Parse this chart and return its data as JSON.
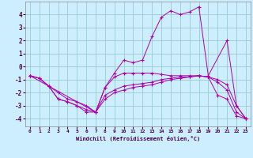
{
  "background_color": "#cceeff",
  "grid_color": "#99cccc",
  "line_color": "#aa00aa",
  "xlim_min": -0.5,
  "xlim_max": 23.5,
  "ylim_min": -4.6,
  "ylim_max": 5.0,
  "yticks": [
    -4,
    -3,
    -2,
    -1,
    0,
    1,
    2,
    3,
    4
  ],
  "xticks": [
    0,
    1,
    2,
    3,
    4,
    5,
    6,
    7,
    8,
    9,
    10,
    11,
    12,
    13,
    14,
    15,
    16,
    17,
    18,
    19,
    20,
    21,
    22,
    23
  ],
  "xlabel": "Windchill (Refroidissement éolien,°C)",
  "lineA_x": [
    0,
    1,
    2,
    7,
    8,
    9,
    10,
    11,
    12,
    13,
    14,
    15,
    16,
    17,
    18,
    19,
    21,
    22,
    23
  ],
  "lineA_y": [
    -0.7,
    -0.9,
    -1.5,
    -3.5,
    -1.6,
    -0.5,
    0.5,
    0.3,
    0.5,
    2.3,
    3.8,
    4.3,
    4.0,
    4.2,
    4.6,
    -0.7,
    2.0,
    -3.0,
    -4.0
  ],
  "lineB_x": [
    0,
    1,
    2,
    3,
    4,
    5,
    6,
    7,
    8,
    9,
    10,
    11,
    12,
    13,
    14,
    15,
    16,
    17,
    18,
    19,
    20,
    21,
    22,
    23
  ],
  "lineB_y": [
    -0.7,
    -0.9,
    -1.5,
    -2.0,
    -2.5,
    -2.7,
    -3.0,
    -3.5,
    -1.6,
    -0.8,
    -0.5,
    -0.5,
    -0.5,
    -0.5,
    -0.6,
    -0.7,
    -0.7,
    -0.7,
    -0.7,
    -0.8,
    -2.2,
    -2.5,
    -3.8,
    -4.0
  ],
  "lineC_x": [
    0,
    1,
    2,
    3,
    4,
    5,
    6,
    7,
    8,
    9,
    10,
    11,
    12,
    13,
    14,
    15,
    16,
    17,
    18,
    19,
    20,
    21,
    22,
    23
  ],
  "lineC_y": [
    -0.7,
    -0.9,
    -1.5,
    -2.5,
    -2.7,
    -3.0,
    -3.3,
    -3.5,
    -2.2,
    -1.8,
    -1.5,
    -1.4,
    -1.3,
    -1.2,
    -1.0,
    -0.9,
    -0.8,
    -0.8,
    -0.7,
    -0.8,
    -1.2,
    -1.8,
    -3.5,
    -4.0
  ],
  "lineD_x": [
    0,
    2,
    3,
    4,
    5,
    6,
    7,
    8,
    9,
    10,
    11,
    12,
    13,
    14,
    15,
    16,
    17,
    18,
    19,
    20,
    21,
    22,
    23
  ],
  "lineD_y": [
    -0.7,
    -1.5,
    -2.5,
    -2.7,
    -3.0,
    -3.5,
    -3.5,
    -2.5,
    -2.0,
    -1.8,
    -1.6,
    -1.5,
    -1.4,
    -1.2,
    -1.0,
    -0.9,
    -0.8,
    -0.7,
    -0.8,
    -1.0,
    -1.4,
    -3.0,
    -4.0
  ]
}
